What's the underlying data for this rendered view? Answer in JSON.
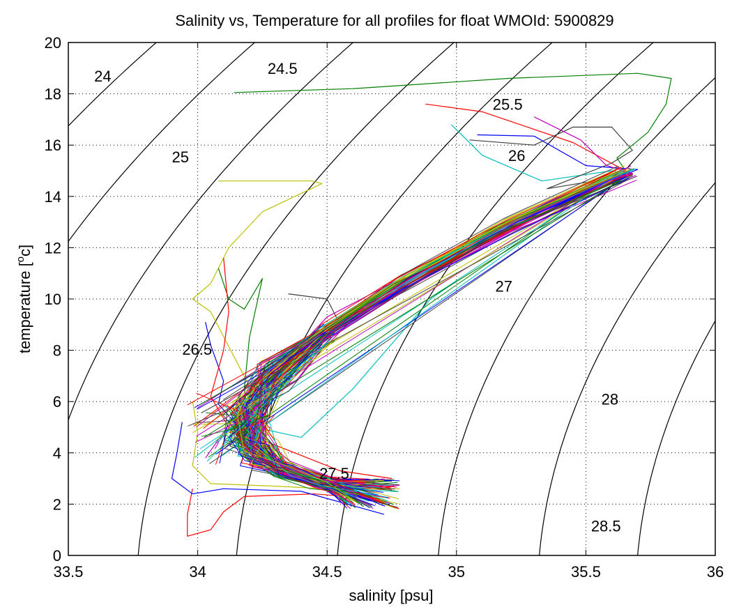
{
  "chart_data": {
    "type": "line",
    "title": "Salinity vs, Temperature for all profiles for float WMOId: 5900829",
    "xlabel": "salinity [psu]",
    "ylabel_main": "temperature [",
    "ylabel_sup": "o",
    "ylabel_end": "c]",
    "xlim": [
      33.5,
      36
    ],
    "ylim": [
      0,
      20
    ],
    "xticks": [
      "33.5",
      "34",
      "34.5",
      "35",
      "35.5",
      "36"
    ],
    "yticks": [
      "0",
      "2",
      "4",
      "6",
      "8",
      "10",
      "12",
      "14",
      "16",
      "18",
      "20"
    ],
    "grid": "dotted",
    "density_contours": [
      {
        "label": "24",
        "s_at_t0": 32.23,
        "label_x": 33.6,
        "label_y": 18.7
      },
      {
        "label": "24.5",
        "s_at_t0": 32.62,
        "label_x": 34.27,
        "label_y": 19.0
      },
      {
        "label": "25",
        "s_at_t0": 33.0,
        "label_x": 33.9,
        "label_y": 15.55
      },
      {
        "label": "25.5",
        "s_at_t0": 33.38,
        "label_x": 35.14,
        "label_y": 17.6
      },
      {
        "label": "26",
        "s_at_t0": 33.77,
        "label_x": 35.2,
        "label_y": 15.6
      },
      {
        "label": "26.5",
        "s_at_t0": 34.15,
        "label_x": 33.94,
        "label_y": 8.05
      },
      {
        "label": "27",
        "s_at_t0": 34.54,
        "label_x": 35.15,
        "label_y": 10.5
      },
      {
        "label": "27.5",
        "s_at_t0": 34.93,
        "label_x": 34.47,
        "label_y": 3.2
      },
      {
        "label": "28",
        "s_at_t0": 35.32,
        "label_x": 35.56,
        "label_y": 6.1
      },
      {
        "label": "28.5",
        "s_at_t0": 35.7,
        "label_x": 35.52,
        "label_y": 1.15
      },
      {
        "label": "",
        "s_at_t0": 36.09,
        "label_x": null,
        "label_y": null
      }
    ],
    "profile_colors": [
      "#0000ff",
      "#007f00",
      "#ff0000",
      "#00bfbf",
      "#bf00bf",
      "#bfbf00",
      "#3f3f3f"
    ],
    "profiles": [
      {
        "color": "#007f00",
        "points": [
          [
            34.14,
            18.05
          ],
          [
            34.6,
            18.2
          ],
          [
            35.2,
            18.6
          ],
          [
            35.7,
            18.8
          ],
          [
            35.83,
            18.6
          ],
          [
            35.81,
            17.6
          ],
          [
            35.74,
            16.5
          ],
          [
            35.62,
            15.5
          ],
          [
            35.66,
            14.9
          ],
          [
            35.1,
            12.4
          ],
          [
            34.6,
            9.6
          ],
          [
            34.3,
            7.0
          ],
          [
            34.18,
            5.4
          ],
          [
            34.26,
            4.0
          ],
          [
            34.45,
            3.0
          ],
          [
            34.72,
            2.75
          ]
        ]
      },
      {
        "color": "#ff0000",
        "points": [
          [
            34.88,
            17.6
          ],
          [
            35.1,
            17.3
          ],
          [
            35.45,
            16.1
          ],
          [
            35.68,
            14.85
          ],
          [
            35.1,
            12.3
          ],
          [
            34.6,
            9.3
          ],
          [
            34.3,
            6.9
          ],
          [
            34.18,
            5.2
          ],
          [
            34.25,
            3.8
          ],
          [
            34.5,
            2.7
          ],
          [
            34.75,
            2.55
          ]
        ]
      },
      {
        "color": "#00bfbf",
        "points": [
          [
            34.98,
            16.8
          ],
          [
            35.1,
            15.6
          ],
          [
            35.33,
            14.6
          ],
          [
            35.6,
            15.0
          ],
          [
            35.68,
            14.85
          ],
          [
            35.0,
            11.9
          ],
          [
            34.5,
            9.0
          ],
          [
            34.25,
            6.4
          ],
          [
            34.2,
            5.0
          ],
          [
            34.3,
            3.5
          ],
          [
            34.55,
            2.7
          ],
          [
            34.76,
            2.6
          ]
        ]
      },
      {
        "color": "#3f3f3f",
        "points": [
          [
            35.05,
            16.2
          ],
          [
            35.3,
            16.0
          ],
          [
            35.45,
            16.7
          ],
          [
            35.6,
            16.7
          ],
          [
            35.68,
            15.8
          ],
          [
            35.6,
            15.3
          ],
          [
            35.35,
            14.3
          ],
          [
            35.68,
            14.85
          ],
          [
            35.0,
            11.8
          ],
          [
            34.4,
            8.3
          ],
          [
            34.22,
            5.8
          ],
          [
            34.2,
            4.6
          ],
          [
            34.35,
            3.2
          ],
          [
            34.7,
            2.7
          ]
        ]
      },
      {
        "color": "#0000ff",
        "points": [
          [
            35.08,
            16.4
          ],
          [
            35.3,
            16.35
          ],
          [
            35.5,
            15.2
          ],
          [
            35.7,
            15.05
          ],
          [
            35.0,
            12.0
          ],
          [
            34.5,
            8.9
          ],
          [
            34.22,
            6.0
          ],
          [
            34.17,
            4.8
          ],
          [
            34.25,
            3.4
          ],
          [
            34.5,
            2.6
          ],
          [
            34.72,
            2.1
          ]
        ]
      },
      {
        "color": "#bf00bf",
        "points": [
          [
            35.3,
            17.1
          ],
          [
            35.48,
            16.2
          ],
          [
            35.58,
            15.2
          ],
          [
            35.68,
            14.9
          ],
          [
            35.05,
            12.2
          ],
          [
            34.5,
            9.3
          ],
          [
            34.25,
            6.6
          ],
          [
            34.19,
            5.3
          ],
          [
            34.28,
            3.6
          ],
          [
            34.55,
            2.55
          ],
          [
            34.76,
            2.7
          ]
        ]
      },
      {
        "color": "#bfbf00",
        "points": [
          [
            34.08,
            14.6
          ],
          [
            34.44,
            14.6
          ],
          [
            34.48,
            14.5
          ],
          [
            34.25,
            13.4
          ],
          [
            34.12,
            12.0
          ],
          [
            34.05,
            10.6
          ],
          [
            33.98,
            10.0
          ],
          [
            34.05,
            9.5
          ],
          [
            34.22,
            6.2
          ],
          [
            34.18,
            4.8
          ],
          [
            34.3,
            3.4
          ],
          [
            34.6,
            2.6
          ],
          [
            34.78,
            2.6
          ]
        ]
      },
      {
        "color": "#ff0000",
        "points": [
          [
            33.98,
            2.6
          ],
          [
            33.96,
            1.6
          ],
          [
            33.96,
            0.75
          ],
          [
            34.05,
            1.0
          ],
          [
            34.1,
            1.7
          ],
          [
            34.18,
            2.3
          ],
          [
            34.45,
            2.4
          ],
          [
            34.7,
            2.2
          ]
        ]
      },
      {
        "color": "#0000ff",
        "points": [
          [
            33.94,
            5.2
          ],
          [
            33.92,
            4.0
          ],
          [
            33.9,
            3.0
          ],
          [
            33.98,
            2.4
          ],
          [
            34.1,
            2.6
          ],
          [
            34.4,
            2.5
          ],
          [
            34.72,
            1.6
          ]
        ]
      },
      {
        "color": "#007f00",
        "points": [
          [
            34.08,
            11.2
          ],
          [
            34.12,
            10.0
          ],
          [
            34.18,
            9.6
          ],
          [
            34.25,
            10.8
          ],
          [
            34.2,
            8.5
          ],
          [
            34.18,
            6.5
          ],
          [
            34.2,
            5.0
          ],
          [
            34.3,
            3.5
          ],
          [
            34.6,
            2.8
          ],
          [
            34.75,
            2.9
          ]
        ]
      },
      {
        "color": "#0000ff",
        "points": [
          [
            34.03,
            9.1
          ],
          [
            34.05,
            8.2
          ],
          [
            34.1,
            6.8
          ],
          [
            34.08,
            5.9
          ],
          [
            34.15,
            5.1
          ],
          [
            34.2,
            4.2
          ],
          [
            34.45,
            3.0
          ],
          [
            34.72,
            2.9
          ]
        ]
      },
      {
        "color": "#3f3f3f",
        "points": [
          [
            34.35,
            10.2
          ],
          [
            34.5,
            10.0
          ],
          [
            34.55,
            9.0
          ],
          [
            34.45,
            8.7
          ],
          [
            34.4,
            8.0
          ],
          [
            34.25,
            6.5
          ],
          [
            34.2,
            5.2
          ],
          [
            34.3,
            3.8
          ],
          [
            34.55,
            2.9
          ],
          [
            34.78,
            2.75
          ]
        ]
      },
      {
        "color": "#00bfbf",
        "points": [
          [
            34.08,
            6.0
          ],
          [
            34.15,
            5.5
          ],
          [
            34.22,
            5.0
          ],
          [
            34.4,
            4.6
          ],
          [
            34.6,
            6.5
          ],
          [
            34.9,
            10.0
          ],
          [
            35.0,
            10.7
          ]
        ]
      },
      {
        "color": "#bf00bf",
        "points": [
          [
            34.03,
            3.8
          ],
          [
            34.1,
            4.8
          ],
          [
            34.2,
            5.5
          ],
          [
            34.3,
            6.5
          ],
          [
            34.5,
            8.2
          ],
          [
            34.72,
            10.5
          ],
          [
            34.92,
            11.3
          ]
        ]
      },
      {
        "color": "#ff0000",
        "points": [
          [
            34.1,
            11.6
          ],
          [
            34.12,
            9.5
          ],
          [
            34.1,
            8.0
          ],
          [
            34.05,
            6.2
          ],
          [
            34.12,
            5.0
          ],
          [
            34.3,
            4.3
          ],
          [
            34.55,
            3.3
          ],
          [
            34.75,
            3.0
          ]
        ]
      },
      {
        "color": "#bfbf00",
        "points": [
          [
            33.98,
            6.0
          ],
          [
            34.0,
            4.8
          ],
          [
            33.98,
            3.5
          ],
          [
            34.05,
            2.8
          ],
          [
            34.3,
            2.7
          ],
          [
            34.6,
            2.55
          ]
        ]
      }
    ]
  }
}
